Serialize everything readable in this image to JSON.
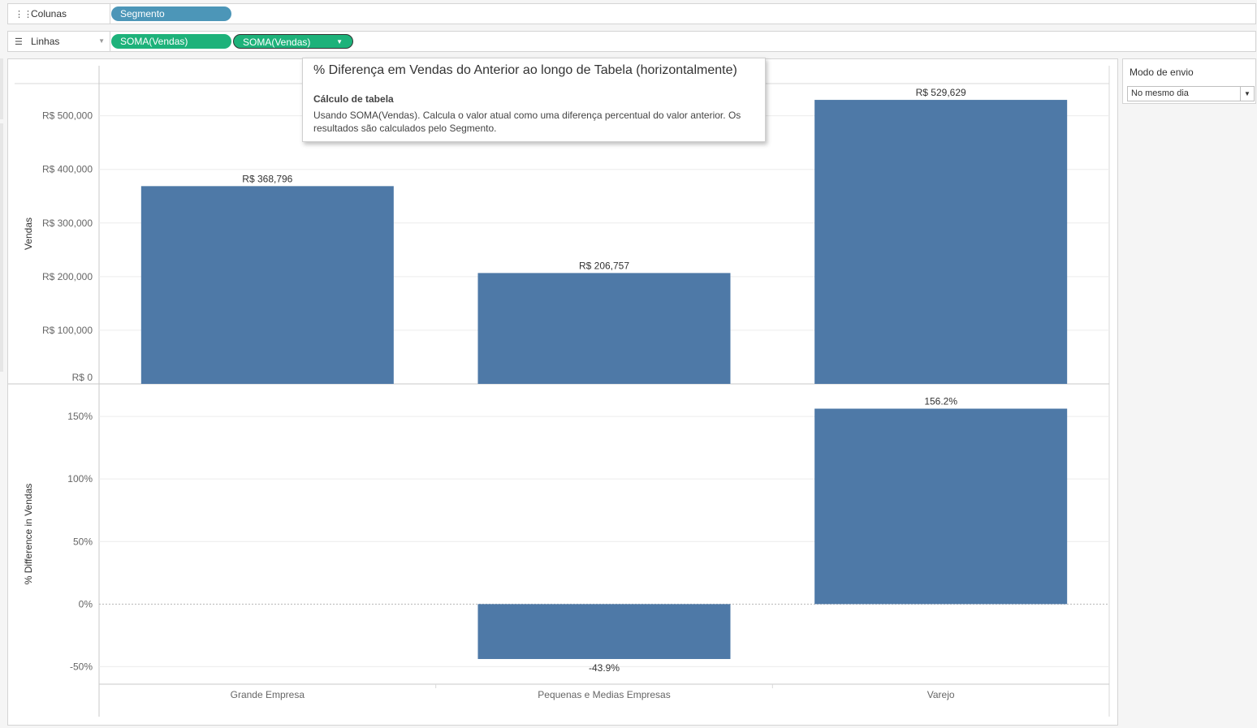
{
  "shelves": {
    "columns": {
      "label": "Colunas",
      "icon": "columns-icon",
      "pills": [
        "Segmento"
      ]
    },
    "rows": {
      "label": "Linhas",
      "icon": "rows-icon",
      "pills": [
        "SOMA(Vendas)",
        "SOMA(Vendas)"
      ]
    }
  },
  "filter": {
    "title": "Modo de envio",
    "selected": "No mesmo dia"
  },
  "tooltip": {
    "title": "% Diferença em Vendas do Anterior ao longo de Tabela (horizontalmente)",
    "heading": "Cálculo de tabela",
    "body": "Usando SOMA(Vendas). Calcula o valor atual como uma diferença percentual do valor anterior. Os resultados são calculados pelo Segmento."
  },
  "colors": {
    "bar": "#4e79a7",
    "pill_dimension": "#4c96b8",
    "pill_measure": "#1db27a"
  },
  "chart_data": [
    {
      "type": "bar",
      "categories": [
        "Grande Empresa",
        "Pequenas e Medias Empresas",
        "Varejo"
      ],
      "values": [
        368796,
        206757,
        529629
      ],
      "data_labels": [
        "R$ 368,796",
        "R$ 206,757",
        "R$ 529,629"
      ],
      "ylabel": "Vendas",
      "ylim": [
        0,
        560000
      ],
      "yticks": [
        0,
        100000,
        200000,
        300000,
        400000,
        500000
      ],
      "ytick_labels": [
        "R$ 0",
        "R$ 100,000",
        "R$ 200,000",
        "R$ 300,000",
        "R$ 400,000",
        "R$ 500,000"
      ],
      "grid": true
    },
    {
      "type": "bar",
      "categories": [
        "Grande Empresa",
        "Pequenas e Medias Empresas",
        "Varejo"
      ],
      "values": [
        null,
        -43.9,
        156.2
      ],
      "data_labels": [
        "",
        "-43.9%",
        "156.2%"
      ],
      "ylabel": "% Difference in Vendas",
      "ylim": [
        -64,
        176
      ],
      "yticks": [
        -50,
        0,
        50,
        100,
        150
      ],
      "ytick_labels": [
        "-50%",
        "0%",
        "50%",
        "100%",
        "150%"
      ],
      "grid": true,
      "xlabel": ""
    }
  ]
}
